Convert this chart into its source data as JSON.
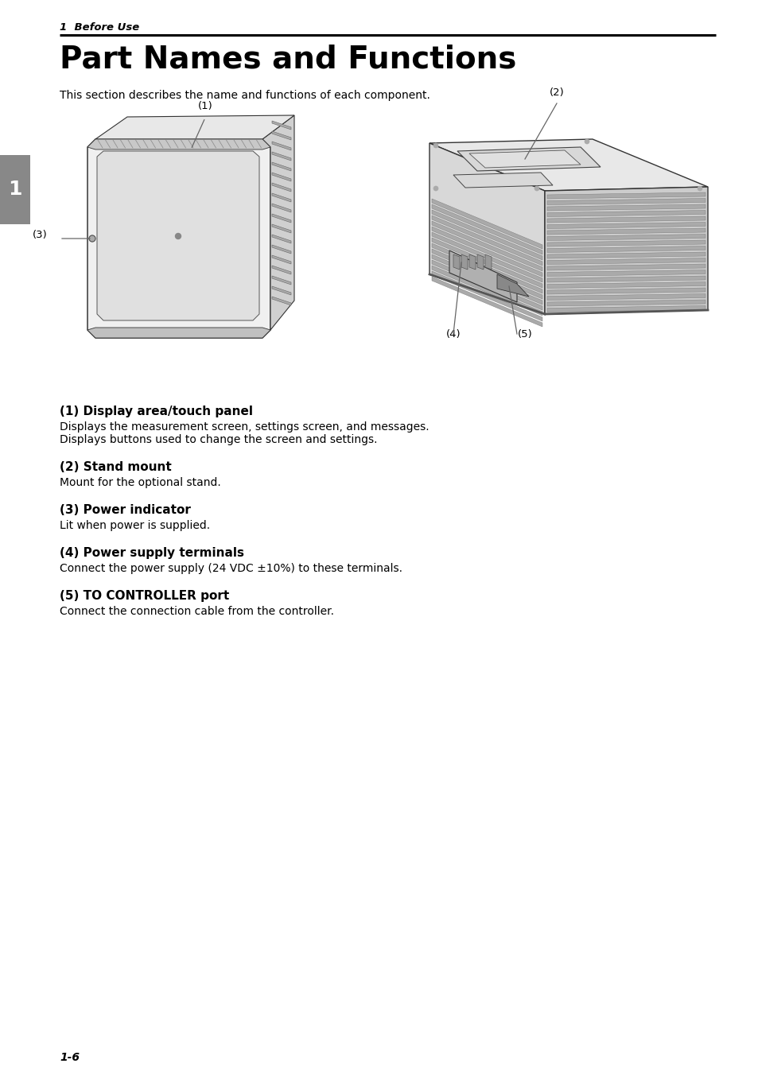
{
  "bg_color": "#ffffff",
  "page_number": "1-6",
  "section_header": "1  Before Use",
  "title": "Part Names and Functions",
  "intro_text": "This section describes the name and functions of each component.",
  "parts": [
    {
      "number": "(1) Display area/touch panel",
      "description": "Displays the measurement screen, settings screen, and messages.\nDisplays buttons used to change the screen and settings."
    },
    {
      "number": "(2) Stand mount",
      "description": "Mount for the optional stand."
    },
    {
      "number": "(3) Power indicator",
      "description": "Lit when power is supplied."
    },
    {
      "number": "(4) Power supply terminals",
      "description": "Connect the power supply (24 VDC ±10%) to these terminals."
    },
    {
      "number": "(5) TO CONTROLLER port",
      "description": "Connect the connection cable from the controller."
    }
  ],
  "text_color": "#000000",
  "header_color": "#000000",
  "title_fontsize": 28,
  "section_fontsize": 9.5,
  "intro_fontsize": 10,
  "part_title_fontsize": 11,
  "part_desc_fontsize": 10,
  "page_num_fontsize": 10,
  "sidebar_color": "#888888",
  "sidebar_text": "1"
}
